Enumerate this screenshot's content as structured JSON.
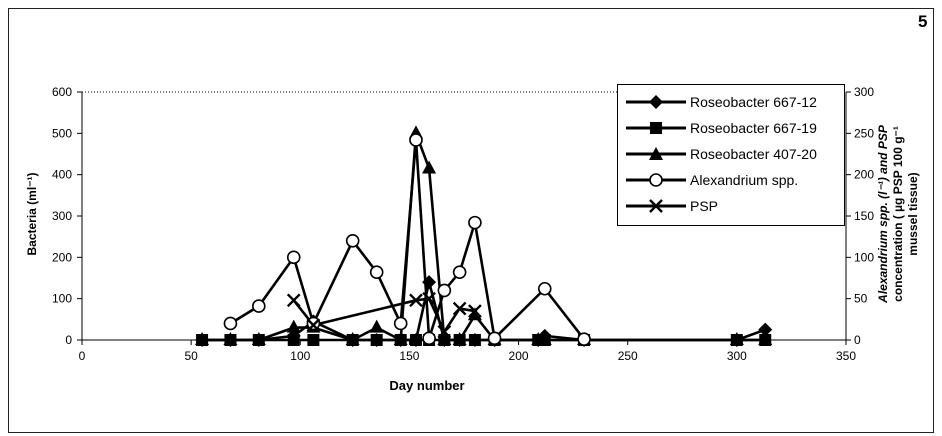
{
  "figure_number": "5",
  "chart_data": {
    "type": "line",
    "xlabel": "Day number",
    "ylabel_left": "Bacteria (ml⁻¹)",
    "ylabel_right_lines": [
      "Alexandrium spp.  (l⁻¹) and PSP",
      "concentration ( µg PSP 100 g⁻¹",
      "mussel tissue)"
    ],
    "xlim": [
      0,
      350
    ],
    "ylim_left": [
      0,
      600
    ],
    "ylim_right": [
      0,
      300
    ],
    "x_ticks": [
      "0",
      "50",
      "100",
      "150",
      "200",
      "250",
      "300",
      "350"
    ],
    "y_left_ticks": [
      "0",
      "100",
      "200",
      "300",
      "400",
      "500",
      "600"
    ],
    "y_right_ticks": [
      "0",
      "50",
      "100",
      "150",
      "200",
      "250",
      "300"
    ],
    "legend_position": "top-right",
    "series": [
      {
        "name": "Roseobacter 667-12",
        "marker": "diamond",
        "axis": "left",
        "points": [
          [
            55,
            0
          ],
          [
            68,
            0
          ],
          [
            81,
            0
          ],
          [
            97,
            10
          ],
          [
            106,
            45
          ],
          [
            124,
            0
          ],
          [
            135,
            0
          ],
          [
            146,
            0
          ],
          [
            153,
            0
          ],
          [
            159,
            140
          ],
          [
            166,
            0
          ],
          [
            173,
            0
          ],
          [
            180,
            0
          ],
          [
            189,
            0
          ],
          [
            209,
            0
          ],
          [
            212,
            10
          ],
          [
            230,
            0
          ],
          [
            300,
            0
          ],
          [
            313,
            25
          ]
        ]
      },
      {
        "name": "Roseobacter 667-19",
        "marker": "square",
        "axis": "left",
        "points": [
          [
            55,
            0
          ],
          [
            68,
            0
          ],
          [
            81,
            0
          ],
          [
            97,
            0
          ],
          [
            106,
            0
          ],
          [
            124,
            0
          ],
          [
            135,
            0
          ],
          [
            146,
            0
          ],
          [
            153,
            0
          ],
          [
            159,
            0
          ],
          [
            166,
            0
          ],
          [
            173,
            0
          ],
          [
            180,
            0
          ],
          [
            189,
            0
          ],
          [
            209,
            0
          ],
          [
            212,
            0
          ],
          [
            230,
            0
          ],
          [
            300,
            0
          ],
          [
            313,
            0
          ]
        ]
      },
      {
        "name": "Roseobacter 407-20",
        "marker": "triangle",
        "axis": "left",
        "points": [
          [
            55,
            0
          ],
          [
            68,
            0
          ],
          [
            81,
            0
          ],
          [
            97,
            30
          ],
          [
            106,
            30
          ],
          [
            124,
            0
          ],
          [
            135,
            30
          ],
          [
            146,
            0
          ],
          [
            153,
            500
          ],
          [
            159,
            415
          ],
          [
            166,
            0
          ],
          [
            173,
            0
          ],
          [
            180,
            60
          ],
          [
            189,
            0
          ],
          [
            209,
            0
          ],
          [
            212,
            0
          ],
          [
            230,
            0
          ],
          [
            300,
            0
          ],
          [
            313,
            0
          ]
        ]
      },
      {
        "name": "Alexandrium spp.",
        "marker": "circle",
        "axis": "right",
        "points": [
          [
            68,
            20
          ],
          [
            81,
            41
          ],
          [
            97,
            100
          ],
          [
            106,
            20
          ],
          [
            124,
            120
          ],
          [
            135,
            82
          ],
          [
            146,
            20
          ],
          [
            153,
            242
          ],
          [
            159,
            2
          ],
          [
            166,
            60
          ],
          [
            173,
            82
          ],
          [
            180,
            142
          ],
          [
            189,
            2
          ],
          [
            212,
            62
          ],
          [
            230,
            1
          ]
        ]
      },
      {
        "name": "PSP",
        "marker": "x",
        "axis": "right",
        "points": [
          [
            97,
            48
          ],
          [
            106,
            18
          ],
          [
            153,
            48
          ],
          [
            159,
            50
          ],
          [
            166,
            10
          ],
          [
            173,
            38
          ],
          [
            180,
            35
          ]
        ]
      }
    ]
  }
}
